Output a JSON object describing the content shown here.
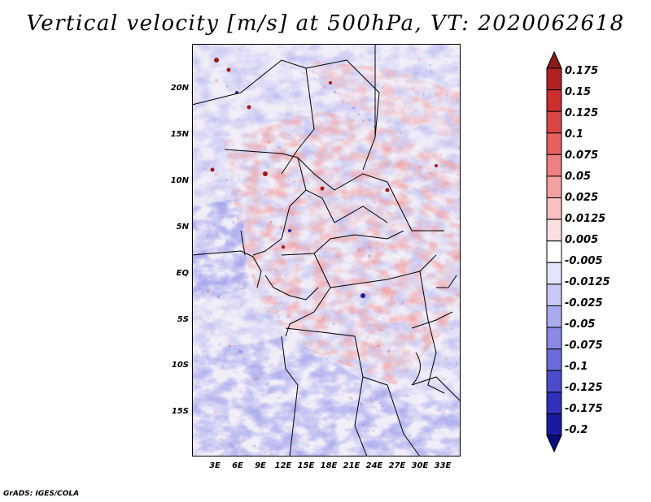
{
  "title": "Vertical velocity [m/s] at 500hPa, VT: 2020062618",
  "credit": "GrADS: IGES/COLA",
  "map": {
    "lat_labels": [
      "20N",
      "15N",
      "10N",
      "5N",
      "EQ",
      "5S",
      "10S",
      "15S"
    ],
    "lon_labels": [
      "3E",
      "6E",
      "9E",
      "12E",
      "15E",
      "18E",
      "21E",
      "24E",
      "27E",
      "30E",
      "33E"
    ],
    "lon_range": [
      0,
      35
    ],
    "lat_range": [
      -20,
      25
    ]
  },
  "colorbar": {
    "labels": [
      "0.175",
      "0.15",
      "0.125",
      "0.1",
      "0.075",
      "0.05",
      "0.025",
      "0.0125",
      "0.005",
      "-0.005",
      "-0.0125",
      "-0.025",
      "-0.05",
      "-0.075",
      "-0.1",
      "-0.125",
      "-0.175",
      "-0.2"
    ],
    "colors": [
      "#8b1a1a",
      "#b22222",
      "#cd2e2e",
      "#dc4646",
      "#e66060",
      "#ee8080",
      "#f4a0a0",
      "#f8c0c0",
      "#fce0e0",
      "#ffffff",
      "#e4e4fa",
      "#c8c8f4",
      "#aaaaf0",
      "#8a8ae6",
      "#6c6cdc",
      "#4c4cd0",
      "#3030bc",
      "#1a1aa0",
      "#0a0a80"
    ]
  }
}
